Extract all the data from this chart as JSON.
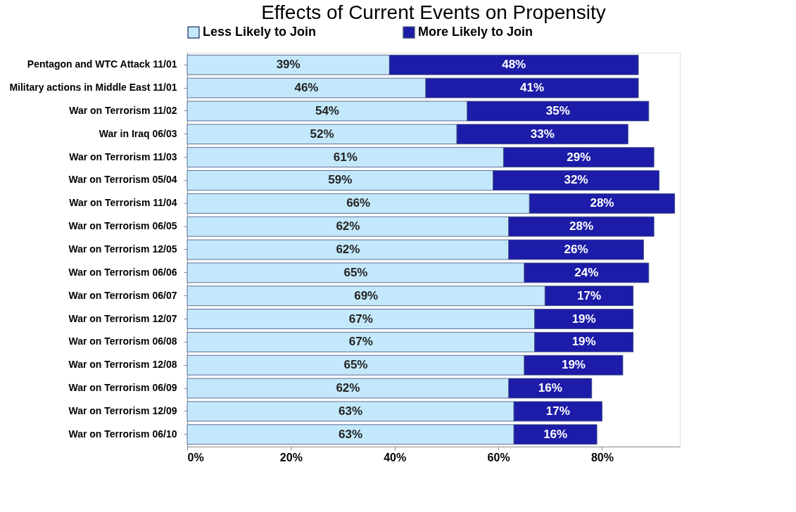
{
  "chart_data": {
    "type": "bar",
    "orientation": "horizontal",
    "stacked": true,
    "title": "Effects of Current Events on Propensity",
    "categories": [
      "Pentagon and WTC Attack   11/01",
      "Military actions in Middle East   11/01",
      "War on Terrorism   11/02",
      "War in Iraq   06/03",
      "War on Terrorism   11/03",
      "War on Terrorism   05/04",
      "War on Terrorism   11/04",
      "War on Terrorism   06/05",
      "War on Terrorism   12/05",
      "War on Terrorism   06/06",
      "War on Terrorism   06/07",
      "War on Terrorism   12/07",
      "War on Terrorism   06/08",
      "War on Terrorism   12/08",
      "War on Terrorism   06/09",
      "War on Terrorism   12/09",
      "War on Terrorism   06/10"
    ],
    "series": [
      {
        "name": "Less Likely to Join",
        "color": "#c4e8fb",
        "values": [
          39,
          46,
          54,
          52,
          61,
          59,
          66,
          62,
          62,
          65,
          69,
          67,
          67,
          65,
          62,
          63,
          63
        ],
        "value_labels": [
          "39%",
          "46%",
          "54%",
          "52%",
          "61%",
          "59%",
          "66%",
          "62%",
          "62%",
          "65%",
          "69%",
          "67%",
          "67%",
          "65%",
          "62%",
          "63%",
          "63%"
        ]
      },
      {
        "name": "More Likely to Join",
        "color": "#1c1ca8",
        "values": [
          48,
          41,
          35,
          33,
          29,
          32,
          28,
          28,
          26,
          24,
          17,
          19,
          19,
          19,
          16,
          17,
          16
        ],
        "value_labels": [
          "48%",
          "41%",
          "35%",
          "33%",
          "29%",
          "32%",
          "28%",
          "28%",
          "26%",
          "24%",
          "17%",
          "19%",
          "19%",
          "19%",
          "16%",
          "17%",
          "16%"
        ]
      }
    ],
    "legend": "top",
    "grid": false,
    "xlim": [
      0,
      95
    ],
    "xticks": [
      {
        "value": 0,
        "label": "0%"
      },
      {
        "value": 20,
        "label": "20%"
      },
      {
        "value": 40,
        "label": "40%"
      },
      {
        "value": 60,
        "label": "60%"
      },
      {
        "value": 80,
        "label": "80%"
      }
    ]
  }
}
